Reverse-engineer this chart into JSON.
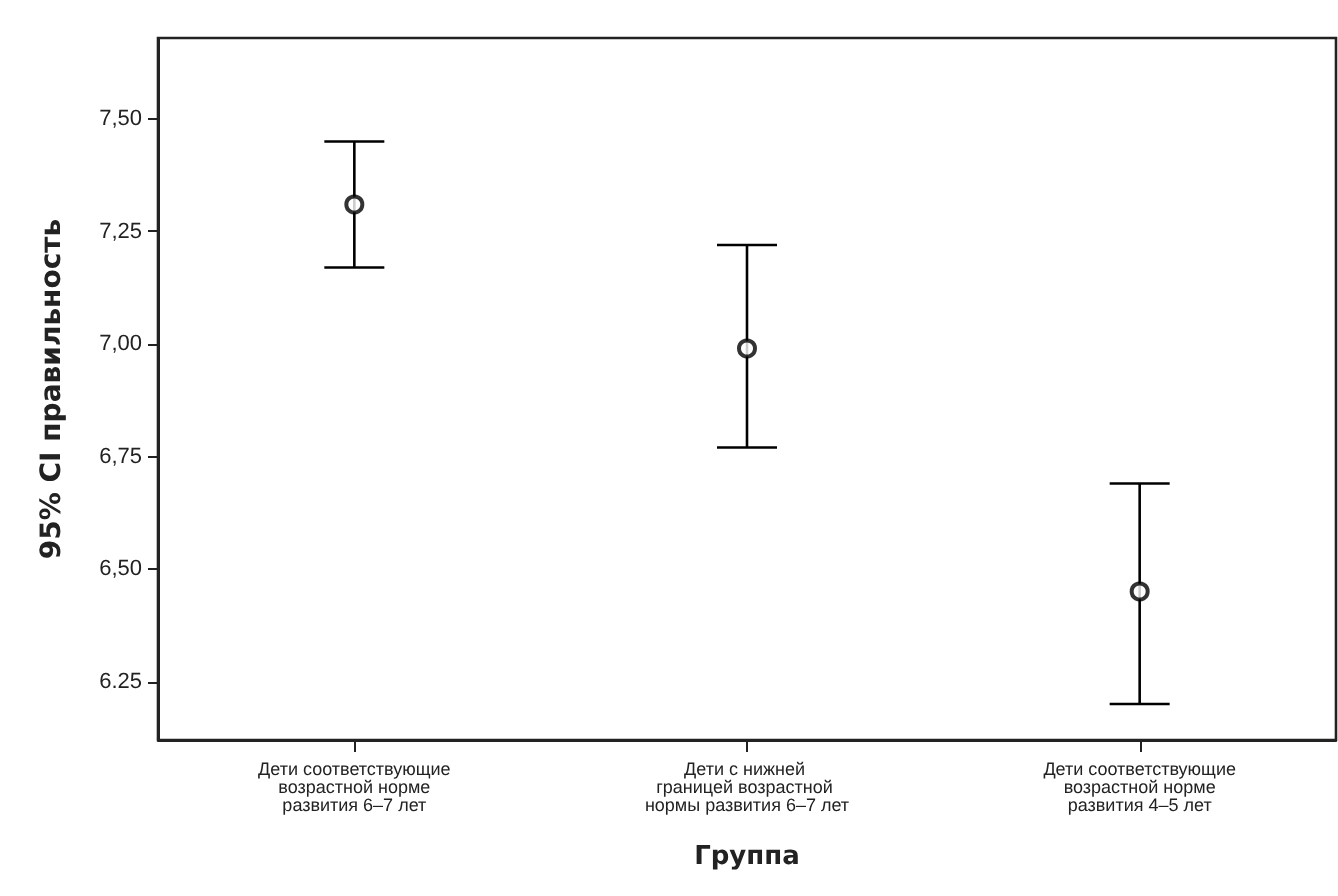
{
  "chart_data": {
    "type": "scatter",
    "xlabel": "Группа",
    "ylabel": "95% CI правильность",
    "categories": [
      "Дети соответствующие возрастной норме развития 6–7 лет",
      "Дети с нижней границей возрастной нормы развития 6–7 лет",
      "Дети соответствующие возрастной норме развития 4–5 лет"
    ],
    "values": [
      7.31,
      6.99,
      6.45
    ],
    "errors": [
      [
        7.17,
        7.45
      ],
      [
        6.77,
        7.22
      ],
      [
        6.2,
        6.69
      ]
    ],
    "color": "#000000",
    "marker": "circle",
    "grid": false,
    "ylim": [
      6.12,
      7.68
    ],
    "yticks": [
      {
        "value": 6.25,
        "label": "6.25"
      },
      {
        "value": 6.5,
        "label": "6,50"
      },
      {
        "value": 6.75,
        "label": "6,75"
      },
      {
        "value": 7.0,
        "label": "7,00"
      },
      {
        "value": 7.25,
        "label": "7,25"
      },
      {
        "value": 7.5,
        "label": "7,50"
      }
    ]
  }
}
